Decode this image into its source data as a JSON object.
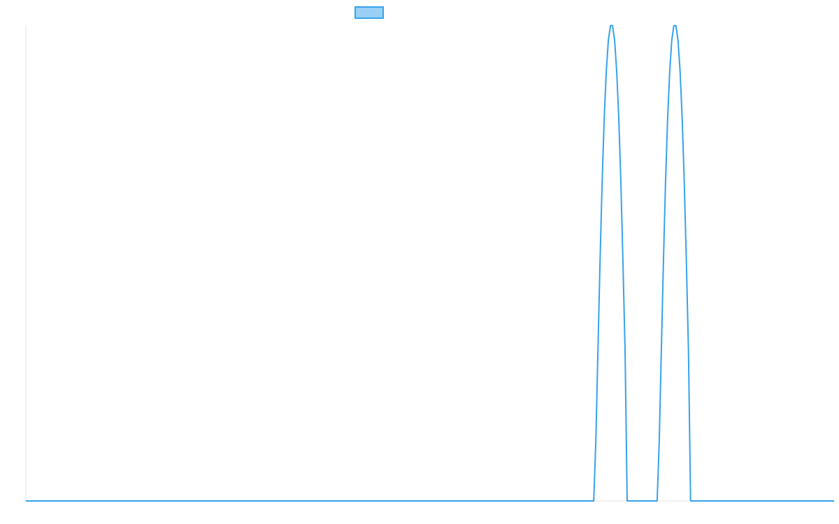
{
  "chart_data": {
    "type": "line",
    "title": "",
    "xlabel": "",
    "ylabel": "",
    "xlim": [
      0,
      1160
    ],
    "ylim": [
      0,
      1
    ],
    "grid": false,
    "legend": "top-center",
    "x_ticks_visible": false,
    "y_ticks_visible": false,
    "series": [
      {
        "color": "#36a2eb",
        "fill": "#9ad0f5",
        "x": [
          0,
          815,
          818,
          821,
          824,
          827,
          830,
          833,
          836,
          839,
          842,
          845,
          848,
          851,
          854,
          857,
          860,
          863,
          906,
          909,
          912,
          915,
          918,
          921,
          924,
          927,
          930,
          933,
          936,
          939,
          942,
          945,
          948,
          951,
          954,
          1160
        ],
        "y": [
          0,
          0,
          0.125,
          0.314,
          0.5,
          0.667,
          0.802,
          0.902,
          0.968,
          0.999,
          0.999,
          0.968,
          0.902,
          0.802,
          0.667,
          0.5,
          0.314,
          0,
          0,
          0.125,
          0.314,
          0.5,
          0.667,
          0.802,
          0.902,
          0.968,
          0.999,
          0.999,
          0.968,
          0.902,
          0.802,
          0.667,
          0.5,
          0.314,
          0,
          0
        ]
      }
    ]
  }
}
